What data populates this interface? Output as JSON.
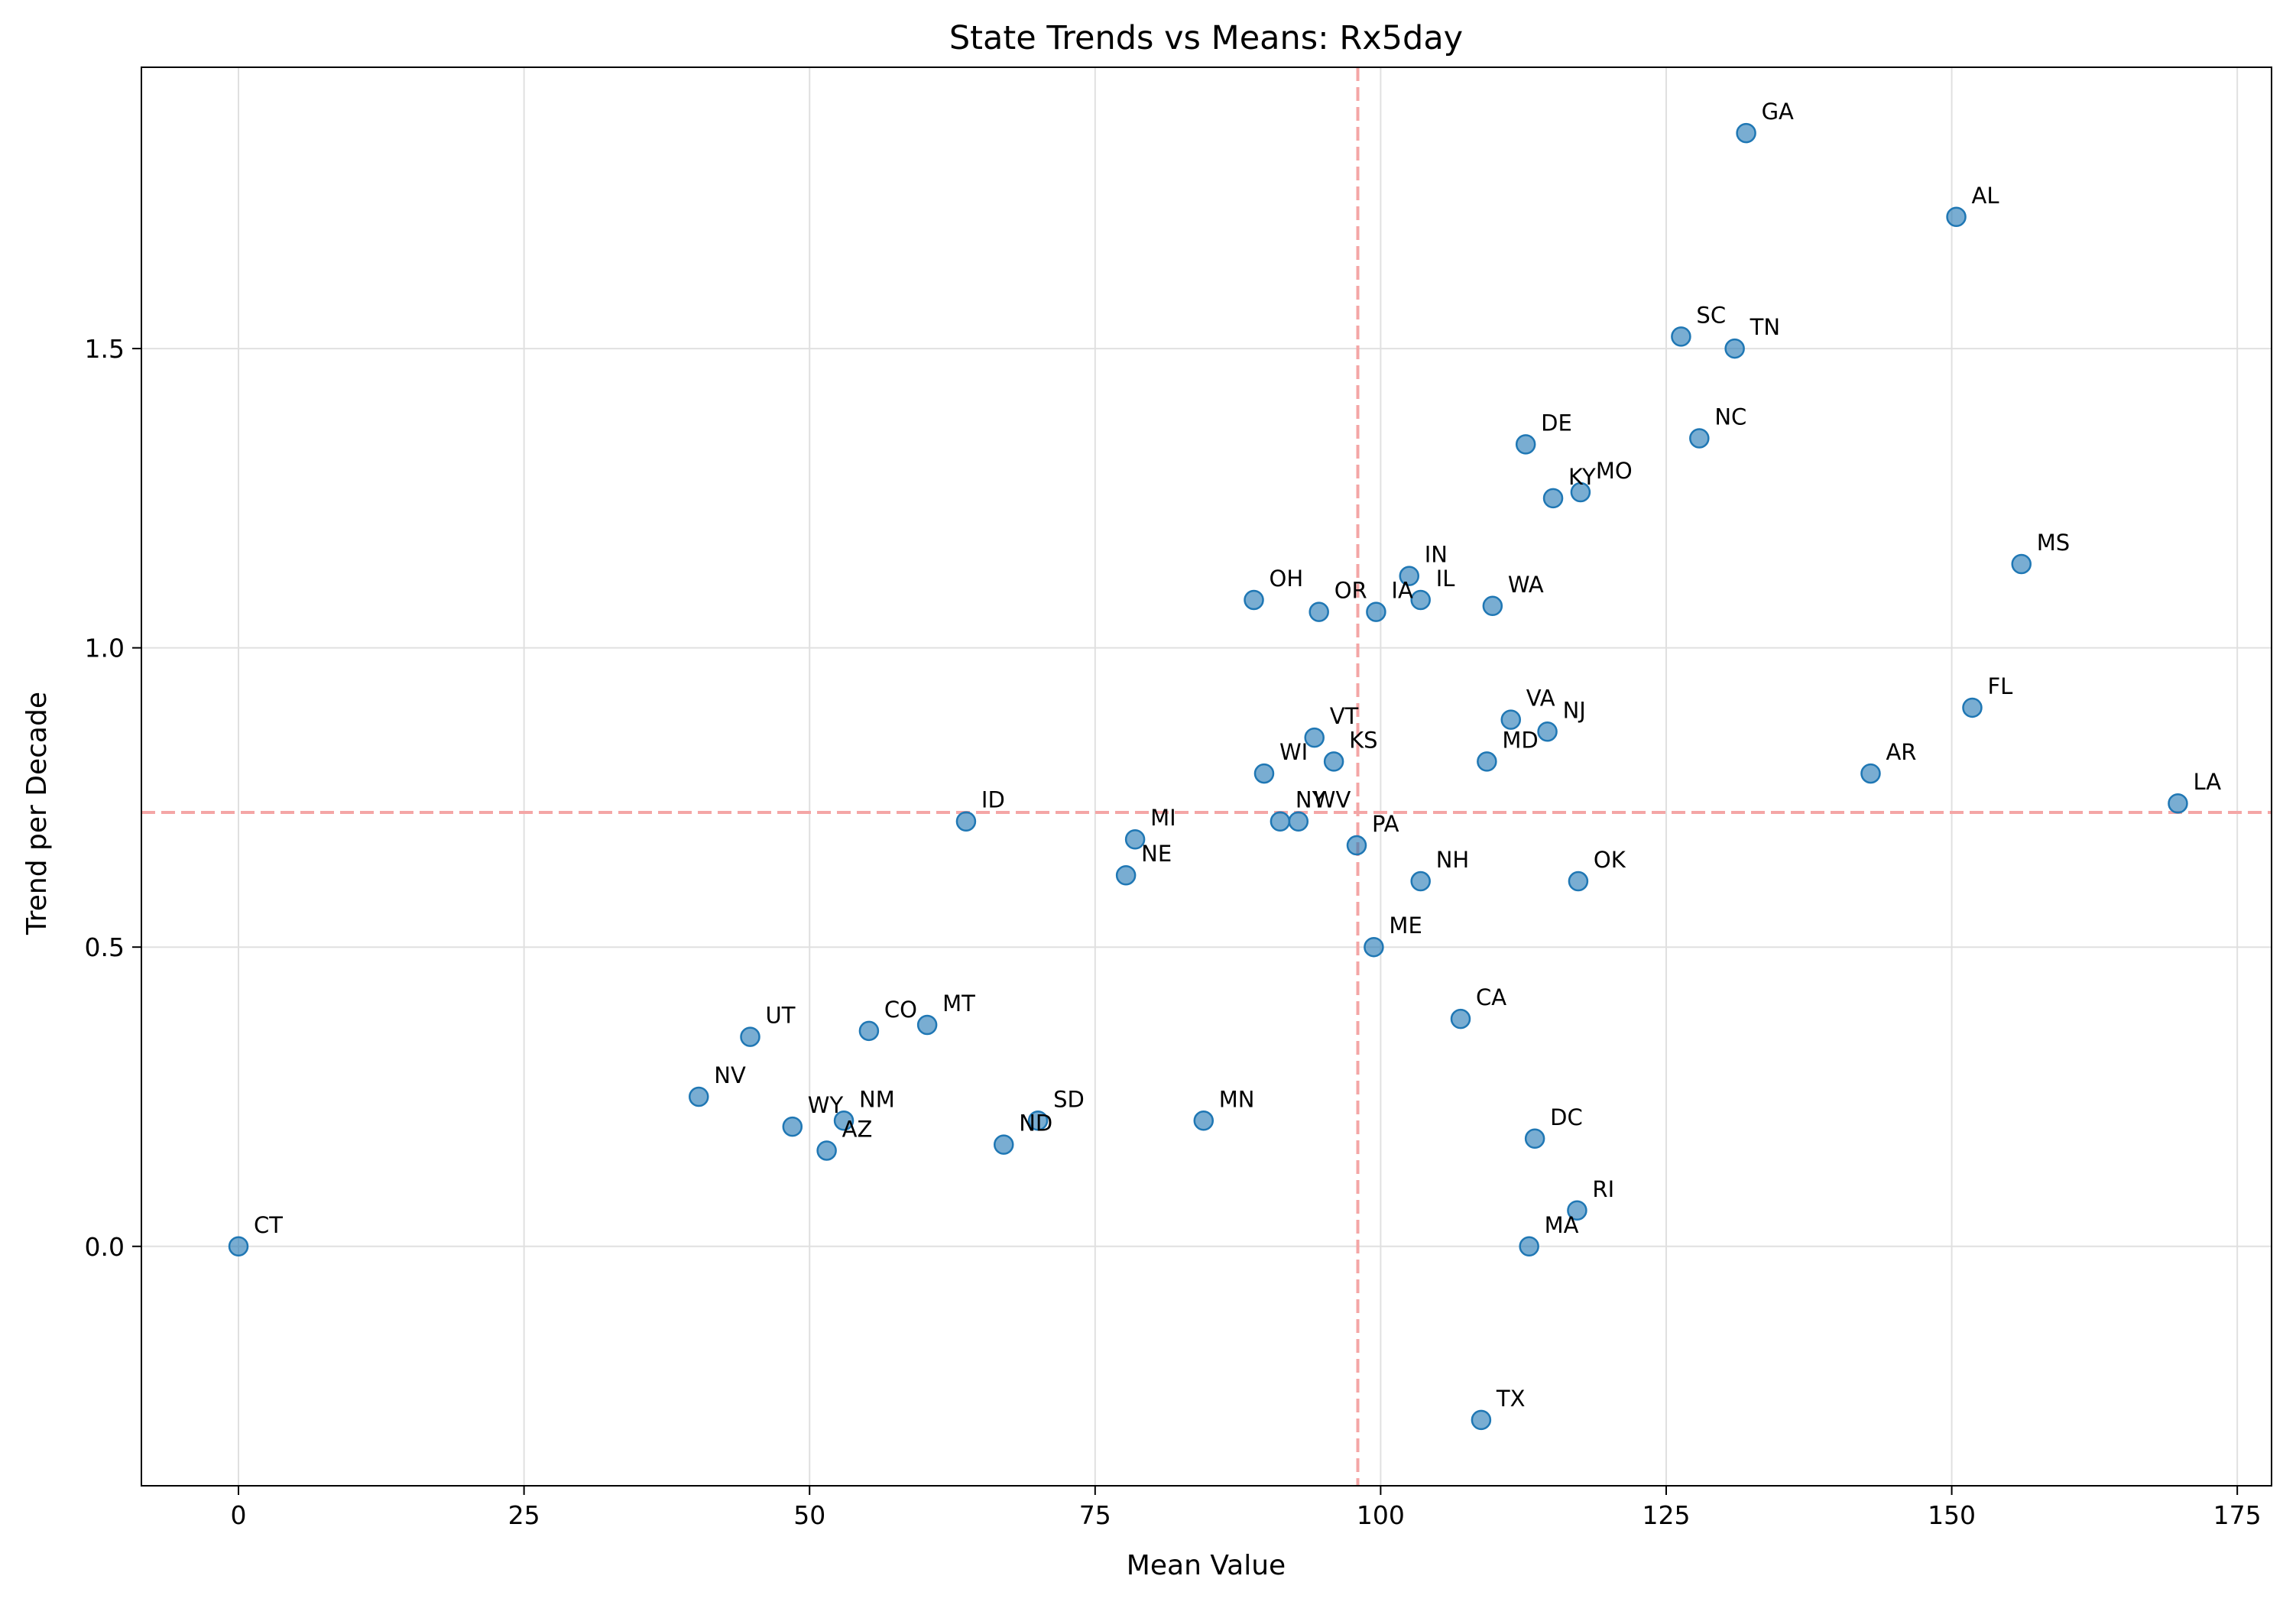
{
  "chart_data": {
    "type": "scatter",
    "title": "State Trends vs Means: Rx5day",
    "xlabel": "Mean Value",
    "ylabel": "Trend per Decade",
    "xlim": [
      -8.5,
      178
    ],
    "ylim": [
      -0.4,
      1.97
    ],
    "xticks": [
      0,
      25,
      50,
      75,
      100,
      125,
      150,
      175
    ],
    "xtick_labels": [
      "0",
      "25",
      "50",
      "75",
      "100",
      "125",
      "150",
      "175"
    ],
    "yticks": [
      0.0,
      0.5,
      1.0,
      1.5
    ],
    "ytick_labels": [
      "0.0",
      "0.5",
      "1.0",
      "1.5"
    ],
    "grid": true,
    "reference_lines": {
      "x": 98.0,
      "y": 0.725,
      "color": "#f4a6a6",
      "style": "dashed"
    },
    "marker_color": "#1f77b4",
    "points": [
      {
        "label": "CT",
        "x": 0.0,
        "y": 0.0
      },
      {
        "label": "NV",
        "x": 40.3,
        "y": 0.25
      },
      {
        "label": "UT",
        "x": 44.8,
        "y": 0.35
      },
      {
        "label": "WY",
        "x": 48.5,
        "y": 0.2
      },
      {
        "label": "AZ",
        "x": 51.5,
        "y": 0.16
      },
      {
        "label": "NM",
        "x": 53.0,
        "y": 0.21
      },
      {
        "label": "CO",
        "x": 55.2,
        "y": 0.36
      },
      {
        "label": "MT",
        "x": 60.3,
        "y": 0.37
      },
      {
        "label": "ID",
        "x": 63.7,
        "y": 0.71
      },
      {
        "label": "ND",
        "x": 67.0,
        "y": 0.17
      },
      {
        "label": "SD",
        "x": 70.0,
        "y": 0.21
      },
      {
        "label": "NE",
        "x": 77.7,
        "y": 0.62
      },
      {
        "label": "MI",
        "x": 78.5,
        "y": 0.68
      },
      {
        "label": "MN",
        "x": 84.5,
        "y": 0.21
      },
      {
        "label": "OH",
        "x": 88.9,
        "y": 1.08
      },
      {
        "label": "WI",
        "x": 89.8,
        "y": 0.79
      },
      {
        "label": "NY",
        "x": 91.2,
        "y": 0.71
      },
      {
        "label": "WV",
        "x": 92.8,
        "y": 0.71
      },
      {
        "label": "VT",
        "x": 94.2,
        "y": 0.85
      },
      {
        "label": "OR",
        "x": 94.6,
        "y": 1.06
      },
      {
        "label": "KS",
        "x": 95.9,
        "y": 0.81
      },
      {
        "label": "PA",
        "x": 97.9,
        "y": 0.67
      },
      {
        "label": "ME",
        "x": 99.4,
        "y": 0.5
      },
      {
        "label": "IA",
        "x": 99.6,
        "y": 1.06
      },
      {
        "label": "IN",
        "x": 102.5,
        "y": 1.12
      },
      {
        "label": "IL",
        "x": 103.5,
        "y": 1.08
      },
      {
        "label": "NH",
        "x": 103.5,
        "y": 0.61
      },
      {
        "label": "CA",
        "x": 107.0,
        "y": 0.38
      },
      {
        "label": "TX",
        "x": 108.8,
        "y": -0.29
      },
      {
        "label": "MD",
        "x": 109.3,
        "y": 0.81
      },
      {
        "label": "WA",
        "x": 109.8,
        "y": 1.07
      },
      {
        "label": "VA",
        "x": 111.4,
        "y": 0.88
      },
      {
        "label": "DE",
        "x": 112.7,
        "y": 1.34
      },
      {
        "label": "MA",
        "x": 113.0,
        "y": 0.0
      },
      {
        "label": "DC",
        "x": 113.5,
        "y": 0.18
      },
      {
        "label": "NJ",
        "x": 114.6,
        "y": 0.86
      },
      {
        "label": "KY",
        "x": 115.1,
        "y": 1.25
      },
      {
        "label": "RI",
        "x": 117.2,
        "y": 0.06
      },
      {
        "label": "OK",
        "x": 117.3,
        "y": 0.61
      },
      {
        "label": "MO",
        "x": 117.5,
        "y": 1.26
      },
      {
        "label": "SC",
        "x": 126.3,
        "y": 1.52
      },
      {
        "label": "NC",
        "x": 127.9,
        "y": 1.35
      },
      {
        "label": "TN",
        "x": 131.0,
        "y": 1.5
      },
      {
        "label": "GA",
        "x": 132.0,
        "y": 1.86
      },
      {
        "label": "AR",
        "x": 142.9,
        "y": 0.79
      },
      {
        "label": "AL",
        "x": 150.4,
        "y": 1.72
      },
      {
        "label": "FL",
        "x": 151.8,
        "y": 0.9
      },
      {
        "label": "MS",
        "x": 156.1,
        "y": 1.14
      },
      {
        "label": "LA",
        "x": 169.8,
        "y": 0.74
      }
    ]
  }
}
